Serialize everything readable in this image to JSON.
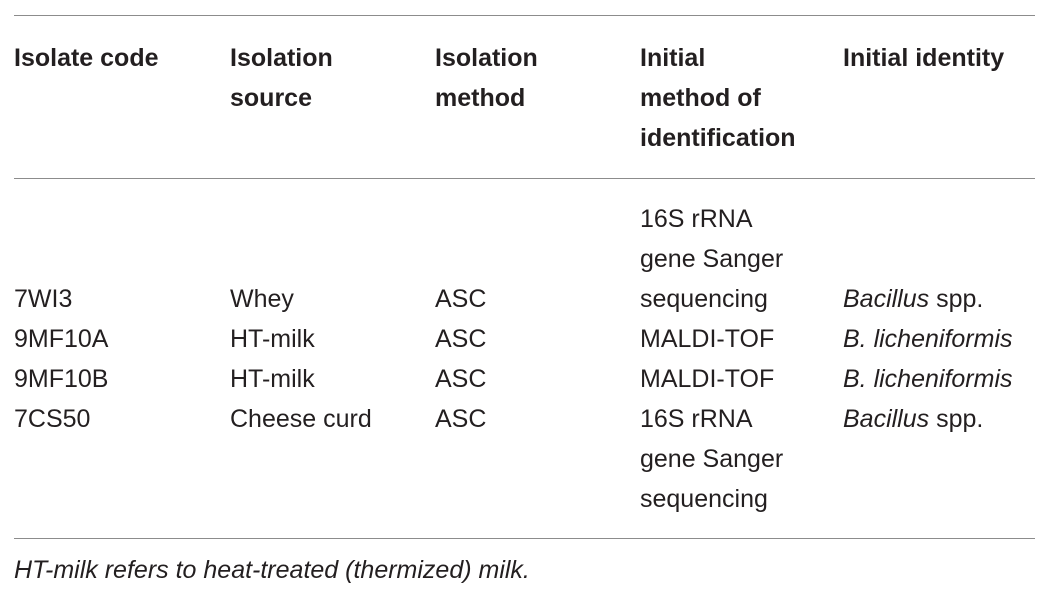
{
  "table": {
    "header": [
      [
        "Isolate code"
      ],
      [
        "Isolation",
        "source"
      ],
      [
        "Isolation",
        "method"
      ],
      [
        "Initial",
        "method of",
        "identification"
      ],
      [
        "Initial identity"
      ]
    ],
    "rows": [
      {
        "code": "7WI3",
        "source": "Whey",
        "method": "ASC",
        "identification": [
          "16S rRNA",
          "gene Sanger",
          "sequencing"
        ],
        "identity": {
          "italic": "Bacillus",
          "plain": "spp."
        }
      },
      {
        "code": "9MF10A",
        "source": "HT-milk",
        "method": "ASC",
        "identification": [
          "MALDI-TOF"
        ],
        "identity": {
          "italic": "B. licheniformis"
        }
      },
      {
        "code": "9MF10B",
        "source": "HT-milk",
        "method": "ASC",
        "identification": [
          "MALDI-TOF"
        ],
        "identity": {
          "italic": "B. licheniformis"
        }
      },
      {
        "code": "7CS50",
        "source": "Cheese curd",
        "method": "ASC",
        "identification": [
          "16S rRNA",
          "gene Sanger",
          "sequencing"
        ],
        "identity": {
          "italic": "Bacillus",
          "plain": "spp."
        }
      }
    ],
    "footnote": "HT-milk refers to heat-treated (thermized) milk."
  }
}
